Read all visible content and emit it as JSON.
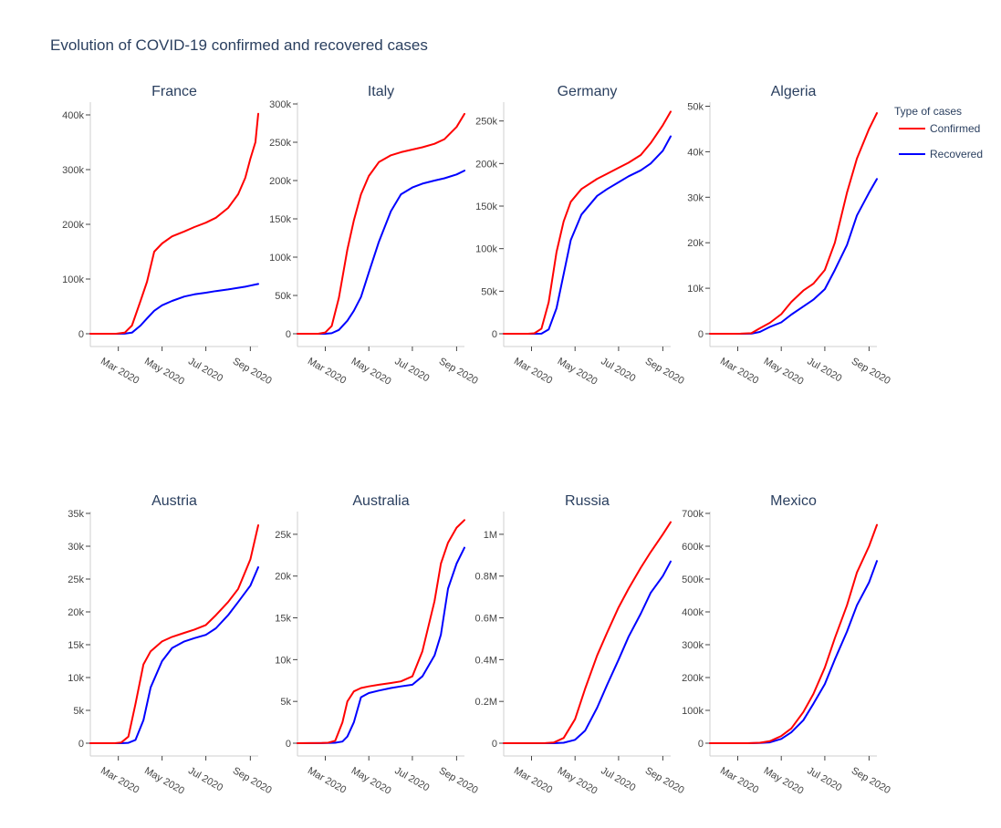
{
  "title": "Evolution of COVID-19 confirmed and recovered cases",
  "legend": {
    "title": "Type of cases",
    "placement": "top-right",
    "items": [
      {
        "label": "Confirmed",
        "color": "#ff0000"
      },
      {
        "label": "Recovered",
        "color": "#0000ff"
      }
    ]
  },
  "chart_data": [
    {
      "type": "line",
      "title": "France",
      "x_ticks": [
        "Mar 2020",
        "May 2020",
        "Jul 2020",
        "Sep 2020"
      ],
      "y_ticks": [
        {
          "v": 0,
          "label": "0"
        },
        {
          "v": 100000,
          "label": "100k"
        },
        {
          "v": 200000,
          "label": "200k"
        },
        {
          "v": 300000,
          "label": "300k"
        },
        {
          "v": 400000,
          "label": "400k"
        }
      ],
      "xlim": [
        "2020-01-22",
        "2020-09-12"
      ],
      "ylim": [
        0,
        420000
      ],
      "x": [
        "2020-01-22",
        "2020-02-15",
        "2020-02-28",
        "2020-03-10",
        "2020-03-20",
        "2020-04-01",
        "2020-04-10",
        "2020-04-20",
        "2020-05-01",
        "2020-05-15",
        "2020-06-01",
        "2020-06-15",
        "2020-07-01",
        "2020-07-15",
        "2020-08-01",
        "2020-08-15",
        "2020-08-25",
        "2020-09-01",
        "2020-09-08",
        "2020-09-12"
      ],
      "series": [
        {
          "name": "Confirmed",
          "color": "#ff0000",
          "values": [
            0,
            0,
            100,
            2000,
            15000,
            60000,
            95000,
            150000,
            165000,
            178000,
            187000,
            195000,
            203000,
            212000,
            230000,
            255000,
            285000,
            320000,
            350000,
            402000
          ]
        },
        {
          "name": "Recovered",
          "color": "#0000ff",
          "values": [
            0,
            0,
            0,
            100,
            2000,
            15000,
            28000,
            42000,
            52000,
            60000,
            68000,
            72000,
            75000,
            78000,
            81000,
            84000,
            86000,
            88000,
            90000,
            91000
          ]
        }
      ]
    },
    {
      "type": "line",
      "title": "Italy",
      "x_ticks": [
        "Mar 2020",
        "May 2020",
        "Jul 2020",
        "Sep 2020"
      ],
      "y_ticks": [
        {
          "v": 0,
          "label": "0"
        },
        {
          "v": 50000,
          "label": "50k"
        },
        {
          "v": 100000,
          "label": "100k"
        },
        {
          "v": 150000,
          "label": "150k"
        },
        {
          "v": 200000,
          "label": "200k"
        },
        {
          "v": 250000,
          "label": "250k"
        },
        {
          "v": 300000,
          "label": "300k"
        }
      ],
      "xlim": [
        "2020-01-22",
        "2020-09-12"
      ],
      "ylim": [
        0,
        300000
      ],
      "x": [
        "2020-01-22",
        "2020-02-20",
        "2020-03-01",
        "2020-03-10",
        "2020-03-20",
        "2020-04-01",
        "2020-04-10",
        "2020-04-20",
        "2020-05-01",
        "2020-05-15",
        "2020-06-01",
        "2020-06-15",
        "2020-07-01",
        "2020-07-15",
        "2020-08-01",
        "2020-08-15",
        "2020-09-01",
        "2020-09-12"
      ],
      "series": [
        {
          "name": "Confirmed",
          "color": "#ff0000",
          "values": [
            0,
            0,
            1700,
            10000,
            47000,
            110000,
            148000,
            182000,
            206000,
            224000,
            233000,
            237000,
            240500,
            243500,
            248000,
            254000,
            270000,
            287000
          ]
        },
        {
          "name": "Recovered",
          "color": "#0000ff",
          "values": [
            0,
            0,
            0,
            700,
            5000,
            17000,
            30000,
            48000,
            80000,
            120000,
            160000,
            182000,
            191000,
            196000,
            200000,
            203000,
            208000,
            213000
          ]
        }
      ]
    },
    {
      "type": "line",
      "title": "Germany",
      "x_ticks": [
        "Mar 2020",
        "May 2020",
        "Jul 2020",
        "Sep 2020"
      ],
      "y_ticks": [
        {
          "v": 0,
          "label": "0"
        },
        {
          "v": 50000,
          "label": "50k"
        },
        {
          "v": 100000,
          "label": "100k"
        },
        {
          "v": 150000,
          "label": "150k"
        },
        {
          "v": 200000,
          "label": "200k"
        },
        {
          "v": 250000,
          "label": "250k"
        }
      ],
      "xlim": [
        "2020-01-22",
        "2020-09-12"
      ],
      "ylim": [
        0,
        270000
      ],
      "x": [
        "2020-01-22",
        "2020-02-25",
        "2020-03-05",
        "2020-03-15",
        "2020-03-25",
        "2020-04-05",
        "2020-04-15",
        "2020-04-25",
        "2020-05-10",
        "2020-06-01",
        "2020-06-15",
        "2020-07-01",
        "2020-07-15",
        "2020-08-01",
        "2020-08-15",
        "2020-09-01",
        "2020-09-12"
      ],
      "series": [
        {
          "name": "Confirmed",
          "color": "#ff0000",
          "values": [
            0,
            0,
            500,
            6000,
            37000,
            96000,
            132000,
            155000,
            170000,
            182000,
            188000,
            195000,
            201000,
            210000,
            224000,
            245000,
            261000
          ]
        },
        {
          "name": "Recovered",
          "color": "#0000ff",
          "values": [
            0,
            0,
            0,
            100,
            5000,
            30000,
            70000,
            110000,
            140000,
            162000,
            170000,
            178000,
            185000,
            192000,
            200000,
            215000,
            232000
          ]
        }
      ]
    },
    {
      "type": "line",
      "title": "Algeria",
      "x_ticks": [
        "Mar 2020",
        "May 2020",
        "Jul 2020",
        "Sep 2020"
      ],
      "y_ticks": [
        {
          "v": 0,
          "label": "0"
        },
        {
          "v": 10000,
          "label": "10k"
        },
        {
          "v": 20000,
          "label": "20k"
        },
        {
          "v": 30000,
          "label": "30k"
        },
        {
          "v": 40000,
          "label": "40k"
        },
        {
          "v": 50000,
          "label": "50k"
        }
      ],
      "xlim": [
        "2020-01-22",
        "2020-09-12"
      ],
      "ylim": [
        0,
        50500
      ],
      "x": [
        "2020-01-22",
        "2020-02-25",
        "2020-03-05",
        "2020-03-20",
        "2020-04-01",
        "2020-04-15",
        "2020-05-01",
        "2020-05-15",
        "2020-06-01",
        "2020-06-15",
        "2020-07-01",
        "2020-07-15",
        "2020-08-01",
        "2020-08-15",
        "2020-09-01",
        "2020-09-12"
      ],
      "series": [
        {
          "name": "Confirmed",
          "color": "#ff0000",
          "values": [
            0,
            0,
            20,
            130,
            1200,
            2400,
            4300,
            7000,
            9500,
            11000,
            14000,
            20000,
            31000,
            38500,
            45000,
            48500
          ]
        },
        {
          "name": "Recovered",
          "color": "#0000ff",
          "values": [
            0,
            0,
            0,
            30,
            400,
            1500,
            2500,
            4200,
            6000,
            7500,
            9800,
            14000,
            19500,
            26000,
            31000,
            34000
          ]
        }
      ]
    },
    {
      "type": "line",
      "title": "Austria",
      "x_ticks": [
        "Mar 2020",
        "May 2020",
        "Jul 2020",
        "Sep 2020"
      ],
      "y_ticks": [
        {
          "v": 0,
          "label": "0"
        },
        {
          "v": 5000,
          "label": "5k"
        },
        {
          "v": 10000,
          "label": "10k"
        },
        {
          "v": 15000,
          "label": "15k"
        },
        {
          "v": 20000,
          "label": "20k"
        },
        {
          "v": 25000,
          "label": "25k"
        },
        {
          "v": 30000,
          "label": "30k"
        },
        {
          "v": 35000,
          "label": "35k"
        }
      ],
      "xlim": [
        "2020-01-22",
        "2020-09-12"
      ],
      "ylim": [
        0,
        35000
      ],
      "x": [
        "2020-01-22",
        "2020-02-25",
        "2020-03-05",
        "2020-03-15",
        "2020-03-25",
        "2020-04-05",
        "2020-04-15",
        "2020-05-01",
        "2020-05-15",
        "2020-06-01",
        "2020-06-15",
        "2020-07-01",
        "2020-07-15",
        "2020-08-01",
        "2020-08-15",
        "2020-09-01",
        "2020-09-12"
      ],
      "series": [
        {
          "name": "Confirmed",
          "color": "#ff0000",
          "values": [
            0,
            0,
            100,
            1000,
            6000,
            12000,
            14000,
            15500,
            16200,
            16800,
            17300,
            18000,
            19500,
            21500,
            23500,
            28000,
            33200
          ]
        },
        {
          "name": "Recovered",
          "color": "#0000ff",
          "values": [
            0,
            0,
            0,
            50,
            500,
            3500,
            8500,
            12500,
            14500,
            15500,
            16000,
            16500,
            17500,
            19500,
            21500,
            24000,
            26800
          ]
        }
      ]
    },
    {
      "type": "line",
      "title": "Australia",
      "x_ticks": [
        "Mar 2020",
        "May 2020",
        "Jul 2020",
        "Sep 2020"
      ],
      "y_ticks": [
        {
          "v": 0,
          "label": "0"
        },
        {
          "v": 5000,
          "label": "5k"
        },
        {
          "v": 10000,
          "label": "10k"
        },
        {
          "v": 15000,
          "label": "15k"
        },
        {
          "v": 20000,
          "label": "20k"
        },
        {
          "v": 25000,
          "label": "25k"
        }
      ],
      "xlim": [
        "2020-01-22",
        "2020-09-12"
      ],
      "ylim": [
        0,
        27500
      ],
      "x": [
        "2020-01-22",
        "2020-02-25",
        "2020-03-05",
        "2020-03-15",
        "2020-03-25",
        "2020-04-01",
        "2020-04-10",
        "2020-04-20",
        "2020-05-01",
        "2020-05-15",
        "2020-06-01",
        "2020-06-15",
        "2020-07-01",
        "2020-07-15",
        "2020-08-01",
        "2020-08-10",
        "2020-08-20",
        "2020-09-01",
        "2020-09-12"
      ],
      "series": [
        {
          "name": "Confirmed",
          "color": "#ff0000",
          "values": [
            0,
            20,
            60,
            300,
            2500,
            5000,
            6200,
            6600,
            6800,
            7000,
            7200,
            7400,
            8000,
            11000,
            17000,
            21500,
            24000,
            25800,
            26700
          ]
        },
        {
          "name": "Recovered",
          "color": "#0000ff",
          "values": [
            0,
            10,
            20,
            50,
            200,
            800,
            2500,
            5500,
            6000,
            6300,
            6600,
            6800,
            7000,
            8000,
            10500,
            13000,
            18500,
            21500,
            23400
          ]
        }
      ]
    },
    {
      "type": "line",
      "title": "Russia",
      "x_ticks": [
        "Mar 2020",
        "May 2020",
        "Jul 2020",
        "Sep 2020"
      ],
      "y_ticks": [
        {
          "v": 0,
          "label": "0"
        },
        {
          "v": 200000,
          "label": "0.2M"
        },
        {
          "v": 400000,
          "label": "0.4M"
        },
        {
          "v": 600000,
          "label": "0.6M"
        },
        {
          "v": 800000,
          "label": "0.8M"
        },
        {
          "v": 1000000,
          "label": "1M"
        }
      ],
      "xlim": [
        "2020-01-22",
        "2020-09-12"
      ],
      "ylim": [
        0,
        1100000
      ],
      "x": [
        "2020-01-22",
        "2020-03-20",
        "2020-04-01",
        "2020-04-15",
        "2020-05-01",
        "2020-05-15",
        "2020-06-01",
        "2020-06-15",
        "2020-07-01",
        "2020-07-15",
        "2020-08-01",
        "2020-08-15",
        "2020-09-01",
        "2020-09-12"
      ],
      "series": [
        {
          "name": "Confirmed",
          "color": "#ff0000",
          "values": [
            0,
            300,
            3000,
            25000,
            115000,
            260000,
            420000,
            530000,
            650000,
            740000,
            840000,
            915000,
            1000000,
            1058000
          ]
        },
        {
          "name": "Recovered",
          "color": "#0000ff",
          "values": [
            0,
            0,
            200,
            2000,
            16000,
            60000,
            170000,
            280000,
            400000,
            510000,
            620000,
            720000,
            800000,
            870000
          ]
        }
      ]
    },
    {
      "type": "line",
      "title": "Mexico",
      "x_ticks": [
        "Mar 2020",
        "May 2020",
        "Jul 2020",
        "Sep 2020"
      ],
      "y_ticks": [
        {
          "v": 0,
          "label": "0"
        },
        {
          "v": 100000,
          "label": "100k"
        },
        {
          "v": 200000,
          "label": "200k"
        },
        {
          "v": 300000,
          "label": "300k"
        },
        {
          "v": 400000,
          "label": "400k"
        },
        {
          "v": 500000,
          "label": "500k"
        },
        {
          "v": 600000,
          "label": "600k"
        },
        {
          "v": 700000,
          "label": "700k"
        }
      ],
      "xlim": [
        "2020-01-22",
        "2020-09-12"
      ],
      "ylim": [
        0,
        700000
      ],
      "x": [
        "2020-01-22",
        "2020-03-15",
        "2020-04-01",
        "2020-04-15",
        "2020-05-01",
        "2020-05-15",
        "2020-06-01",
        "2020-06-15",
        "2020-07-01",
        "2020-07-15",
        "2020-08-01",
        "2020-08-15",
        "2020-09-01",
        "2020-09-12"
      ],
      "series": [
        {
          "name": "Confirmed",
          "color": "#ff0000",
          "values": [
            0,
            100,
            1500,
            6000,
            22000,
            45000,
            95000,
            150000,
            230000,
            320000,
            420000,
            520000,
            600000,
            665000
          ]
        },
        {
          "name": "Recovered",
          "color": "#0000ff",
          "values": [
            0,
            10,
            500,
            2500,
            13000,
            33000,
            70000,
            120000,
            180000,
            255000,
            340000,
            420000,
            490000,
            555000
          ]
        }
      ]
    }
  ]
}
